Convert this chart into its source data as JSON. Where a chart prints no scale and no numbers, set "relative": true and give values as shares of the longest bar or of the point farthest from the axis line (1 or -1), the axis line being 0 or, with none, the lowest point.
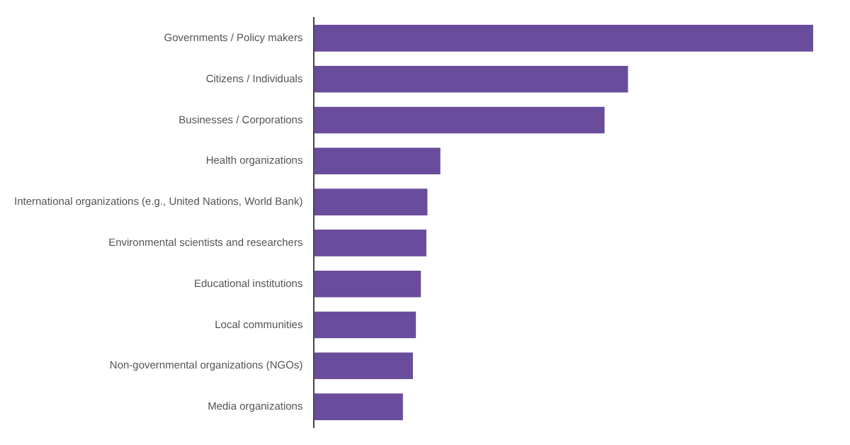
{
  "chart_data": {
    "type": "bar",
    "orientation": "horizontal",
    "relative": true,
    "categories": [
      "Governments / Policy makers",
      "Citizens / Individuals",
      "Businesses / Corporations",
      "Health organizations",
      "International organizations (e.g., United Nations, World Bank)",
      "Environmental scientists and researchers",
      "Educational institutions",
      "Local communities",
      "Non-governmental organizations (NGOs)",
      "Media organizations"
    ],
    "values": [
      1,
      0.629,
      0.582,
      0.253,
      0.227,
      0.225,
      0.214,
      0.204,
      0.198,
      0.178
    ],
    "color": "#6a4c9c",
    "grid": false,
    "legend": false
  }
}
